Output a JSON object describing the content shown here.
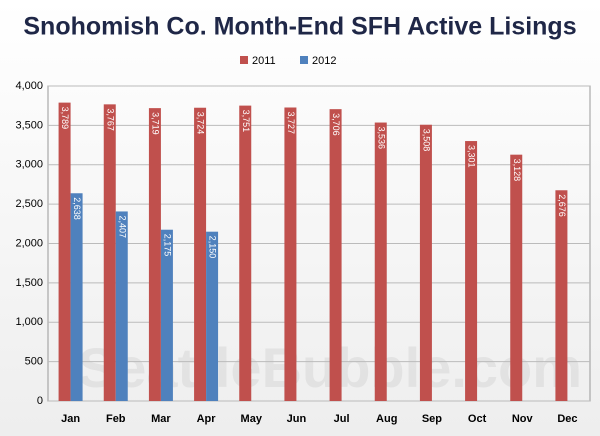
{
  "chart_data": {
    "type": "bar",
    "title": "Snohomish Co. Month-End SFH Active Lisings",
    "annotations": [
      "SeattleBubble.com"
    ],
    "categories": [
      "Jan",
      "Feb",
      "Mar",
      "Apr",
      "May",
      "Jun",
      "Jul",
      "Aug",
      "Sep",
      "Oct",
      "Nov",
      "Dec"
    ],
    "series": [
      {
        "name": "2011",
        "color": "#c0504d",
        "values": [
          3789,
          3767,
          3719,
          3724,
          3751,
          3727,
          3706,
          3536,
          3508,
          3301,
          3128,
          2676
        ],
        "value_labels": [
          "3,789",
          "3,767",
          "3,719",
          "3,724",
          "3,751",
          "3,727",
          "3,706",
          "3,536",
          "3,508",
          "3,301",
          "3,128",
          "2,676"
        ]
      },
      {
        "name": "2012",
        "color": "#4f81bd",
        "values": [
          2638,
          2407,
          2175,
          2150,
          null,
          null,
          null,
          null,
          null,
          null,
          null,
          null
        ],
        "value_labels": [
          "2,638",
          "2,407",
          "2,175",
          "2,150",
          null,
          null,
          null,
          null,
          null,
          null,
          null,
          null
        ]
      }
    ],
    "ylim": [
      0,
      4000
    ],
    "yticks": [
      0,
      500,
      {
        "value": 1000,
        "label": "1,000"
      },
      {
        "value": 1500,
        "label": "1,500"
      },
      {
        "value": 2000,
        "label": "2,000"
      },
      {
        "value": 2500,
        "label": "2,500"
      },
      {
        "value": 3000,
        "label": "3,000"
      },
      {
        "value": 3500,
        "label": "3,500"
      },
      {
        "value": 4000,
        "label": "4,000"
      }
    ],
    "grid": true,
    "legend": "top"
  }
}
